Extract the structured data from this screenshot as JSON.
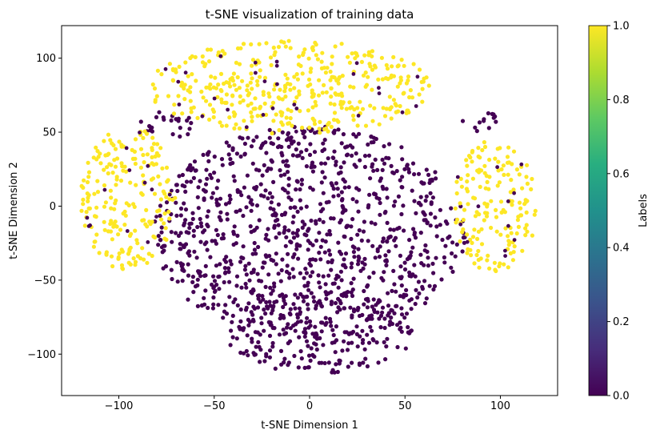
{
  "chart_data": {
    "type": "scatter",
    "title": "t-SNE visualization of training data",
    "xlabel": "t-SNE Dimension 1",
    "ylabel": "t-SNE Dimension 2",
    "xlim": [
      -130,
      130
    ],
    "ylim": [
      -128,
      122
    ],
    "xticks": [
      -100,
      -50,
      0,
      50,
      100
    ],
    "yticks": [
      -100,
      -50,
      0,
      50,
      100
    ],
    "grid": false,
    "colormap": "viridis",
    "colorbar": {
      "label": "Labels",
      "range": [
        0.0,
        1.0
      ],
      "ticks": [
        0.0,
        0.2,
        0.4,
        0.6,
        0.8,
        1.0
      ],
      "tick_labels": [
        "0.0",
        "0.2",
        "0.4",
        "0.6",
        "0.8",
        "1.0"
      ]
    },
    "series_colors": {
      "label_0": "#440154",
      "label_1": "#fde725"
    },
    "regions": [
      {
        "label": 0,
        "name": "central cluster",
        "center": [
          0,
          -18
        ],
        "radii": [
          82,
          72
        ]
      },
      {
        "label": 0,
        "name": "lower lobe",
        "center": [
          5,
          -85
        ],
        "radii": [
          50,
          28
        ]
      },
      {
        "label": 0,
        "name": "upper-left tail",
        "center": [
          -75,
          55
        ],
        "radii": [
          15,
          10
        ]
      },
      {
        "label": 0,
        "name": "upper-right tail",
        "center": [
          90,
          57
        ],
        "radii": [
          10,
          8
        ]
      },
      {
        "label": 1,
        "name": "upper arc",
        "center": [
          -10,
          80
        ],
        "radii": [
          75,
          32
        ]
      },
      {
        "label": 1,
        "name": "left cluster",
        "center": [
          -95,
          5
        ],
        "radii": [
          25,
          50
        ]
      },
      {
        "label": 1,
        "name": "right cluster",
        "center": [
          97,
          0
        ],
        "radii": [
          22,
          45
        ]
      }
    ]
  }
}
